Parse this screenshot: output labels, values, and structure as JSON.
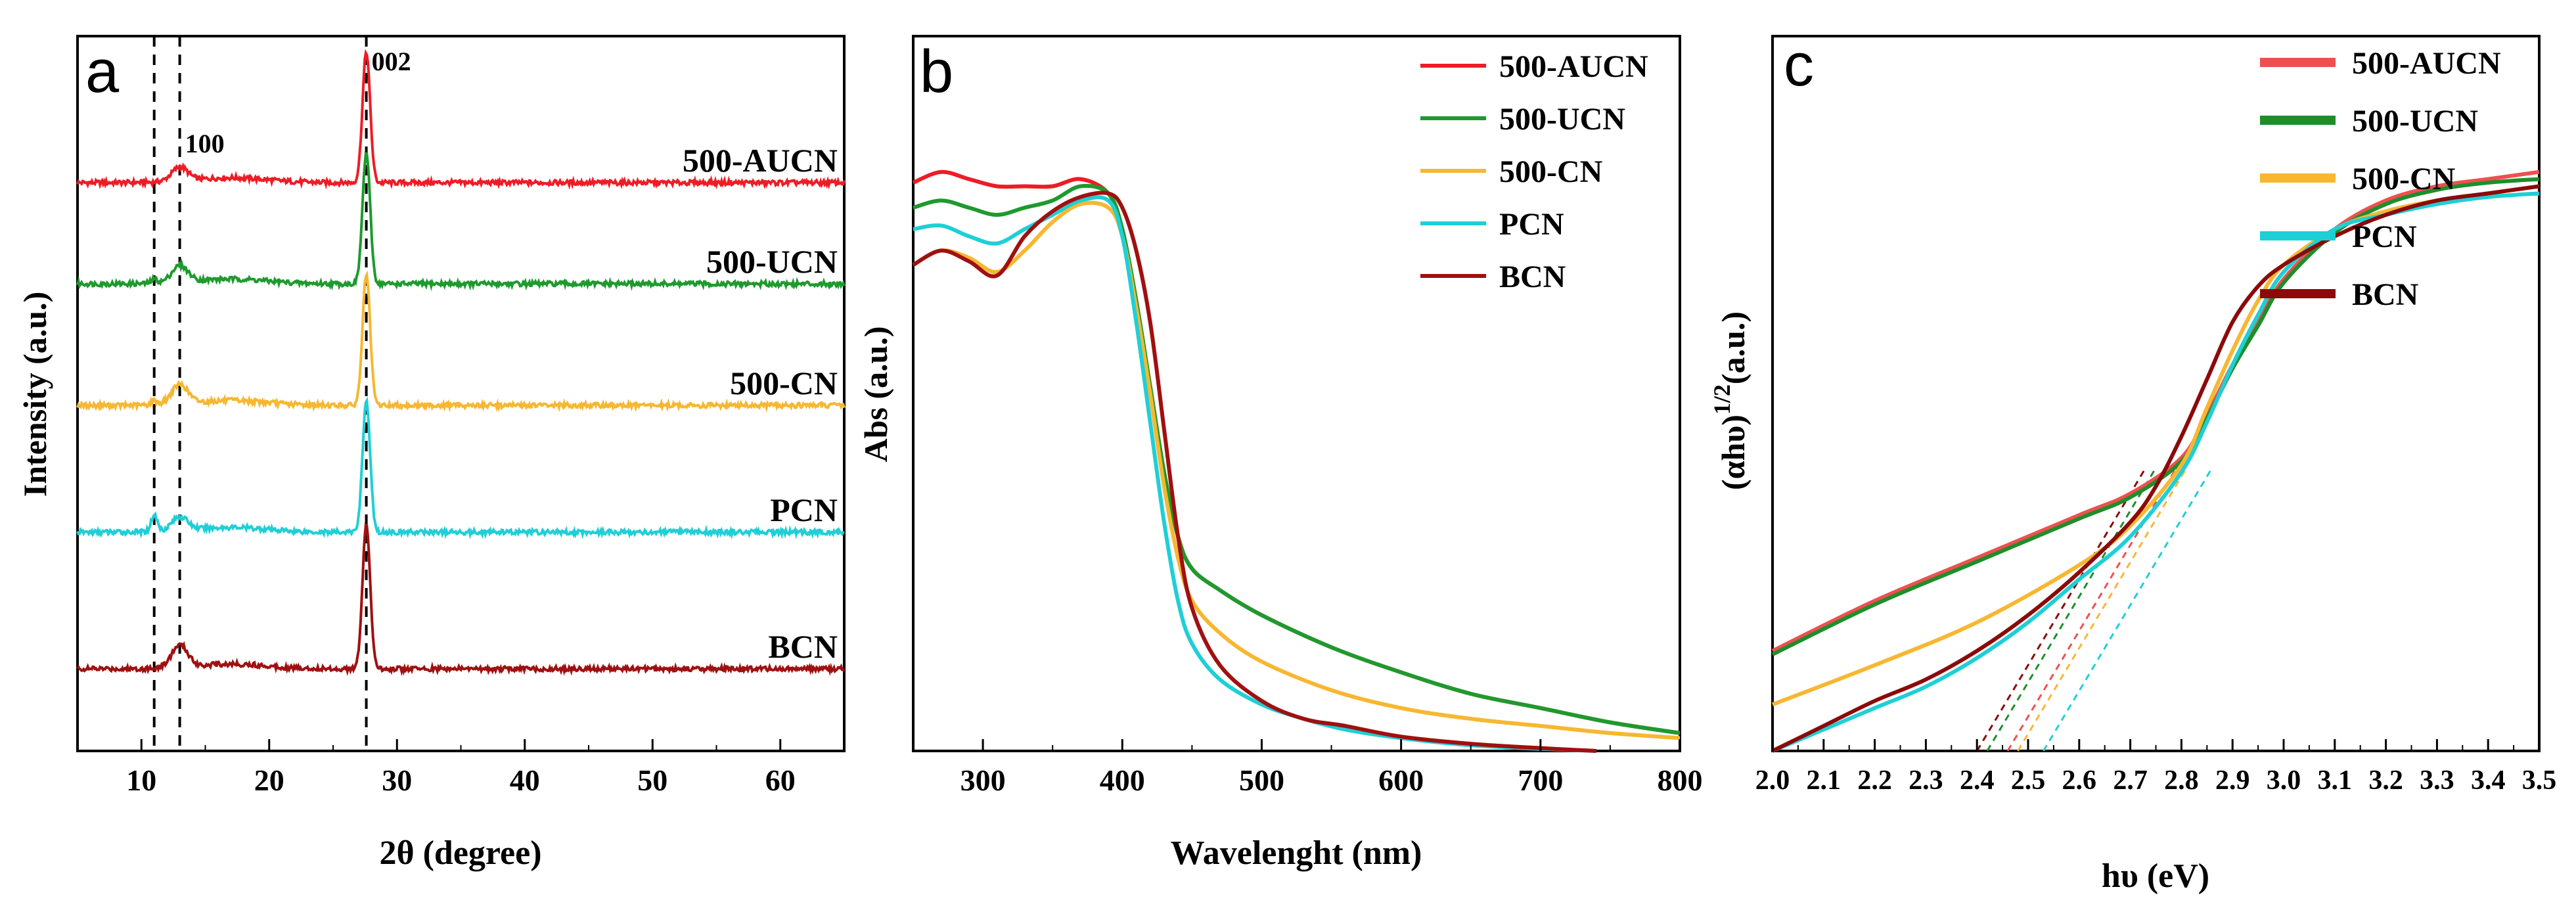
{
  "chart_data": [
    {
      "panel": "a",
      "type": "line",
      "xlabel": "2θ (degree)",
      "ylabel": "Intensity (a.u.)",
      "xlim": [
        5,
        65
      ],
      "xticks": [
        10,
        20,
        30,
        40,
        50,
        60
      ],
      "yticks": [],
      "reference_lines": [
        11,
        13,
        27.6
      ],
      "peak_labels": [
        {
          "text": "100",
          "x": 13
        },
        {
          "text": "002",
          "x": 27.6
        }
      ],
      "series": [
        {
          "name": "500-AUCN",
          "color": "#ee1c25",
          "offset": 4,
          "peak_002": 0.95,
          "peak_100": 0.1,
          "bump_11": 0.0
        },
        {
          "name": "500-UCN",
          "color": "#1e9a2e",
          "offset": 3,
          "peak_002": 0.95,
          "peak_100": 0.12,
          "bump_11": 0.03
        },
        {
          "name": "500-CN",
          "color": "#f7b731",
          "offset": 2,
          "peak_002": 0.95,
          "peak_100": 0.14,
          "bump_11": 0.03
        },
        {
          "name": "PCN",
          "color": "#1fcfd6",
          "offset": 1,
          "peak_002": 0.95,
          "peak_100": 0.1,
          "bump_11": 0.12
        },
        {
          "name": "BCN",
          "color": "#a01010",
          "offset": 0,
          "peak_002": 1.05,
          "peak_100": 0.16,
          "bump_11": 0.0
        }
      ]
    },
    {
      "panel": "b",
      "type": "line",
      "xlabel": "Wavelenght (nm)",
      "ylabel": "Abs (a.u.)",
      "xlim": [
        250,
        800
      ],
      "ylim": [
        0,
        1
      ],
      "xticks": [
        300,
        400,
        500,
        600,
        700,
        800
      ],
      "yticks": [],
      "legend_position": "top-right",
      "series": [
        {
          "name": "500-AUCN",
          "color": "#ee1c25",
          "x": [
            250,
            270,
            290,
            310,
            330,
            350,
            370,
            390,
            400,
            410,
            420,
            430,
            440,
            450,
            470,
            500,
            550,
            600,
            650,
            700,
            750,
            800
          ],
          "y": [
            0.795,
            0.81,
            0.8,
            0.79,
            0.79,
            0.79,
            0.8,
            0.78,
            0.73,
            0.63,
            0.51,
            0.39,
            0.3,
            0.255,
            0.225,
            0.19,
            0.145,
            0.11,
            0.08,
            0.06,
            0.04,
            0.025
          ]
        },
        {
          "name": "500-UCN",
          "color": "#1e9a2e",
          "x": [
            250,
            270,
            290,
            310,
            330,
            350,
            370,
            390,
            400,
            410,
            420,
            430,
            440,
            450,
            470,
            500,
            550,
            600,
            650,
            700,
            750,
            800
          ],
          "y": [
            0.76,
            0.77,
            0.76,
            0.75,
            0.76,
            0.77,
            0.79,
            0.78,
            0.73,
            0.63,
            0.51,
            0.39,
            0.3,
            0.255,
            0.225,
            0.19,
            0.145,
            0.11,
            0.08,
            0.06,
            0.04,
            0.025
          ]
        },
        {
          "name": "500-CN",
          "color": "#f7b731",
          "x": [
            250,
            270,
            290,
            310,
            330,
            350,
            370,
            390,
            400,
            410,
            420,
            430,
            440,
            450,
            470,
            500,
            550,
            600,
            650,
            700,
            750,
            800
          ],
          "y": [
            0.68,
            0.7,
            0.69,
            0.67,
            0.7,
            0.74,
            0.765,
            0.76,
            0.72,
            0.62,
            0.5,
            0.37,
            0.27,
            0.21,
            0.165,
            0.125,
            0.085,
            0.06,
            0.045,
            0.035,
            0.025,
            0.018
          ]
        },
        {
          "name": "PCN",
          "color": "#1fcfd6",
          "x": [
            250,
            270,
            290,
            310,
            330,
            350,
            370,
            390,
            400,
            410,
            420,
            430,
            440,
            450,
            470,
            500,
            530,
            560,
            600,
            650,
            700,
            740
          ],
          "y": [
            0.73,
            0.735,
            0.72,
            0.71,
            0.73,
            0.75,
            0.77,
            0.77,
            0.72,
            0.6,
            0.46,
            0.32,
            0.21,
            0.15,
            0.1,
            0.065,
            0.045,
            0.03,
            0.018,
            0.008,
            0.003,
            0.0
          ]
        },
        {
          "name": "BCN",
          "color": "#a01010",
          "x": [
            250,
            270,
            290,
            310,
            330,
            350,
            370,
            390,
            400,
            410,
            420,
            430,
            440,
            450,
            470,
            500,
            530,
            560,
            600,
            650,
            700,
            740
          ],
          "y": [
            0.68,
            0.7,
            0.685,
            0.665,
            0.72,
            0.755,
            0.775,
            0.78,
            0.76,
            0.7,
            0.6,
            0.45,
            0.3,
            0.2,
            0.12,
            0.07,
            0.045,
            0.035,
            0.02,
            0.01,
            0.004,
            0.0
          ]
        }
      ]
    },
    {
      "panel": "c",
      "type": "line",
      "xlabel": "hυ (eV)",
      "ylabel": "(αhυ)",
      "ylabel_superscript": "1/2",
      "ylabel_suffix": "(a.u.)",
      "xlim": [
        2.0,
        3.5
      ],
      "ylim": [
        0,
        1
      ],
      "xticks": [
        2.0,
        2.1,
        2.2,
        2.3,
        2.4,
        2.5,
        2.6,
        2.7,
        2.8,
        2.9,
        3.0,
        3.1,
        3.2,
        3.3,
        3.4,
        3.5
      ],
      "yticks": [],
      "legend_position": "top-right",
      "series": [
        {
          "name": "500-AUCN",
          "color": "#ee5050",
          "x": [
            2.0,
            2.2,
            2.4,
            2.6,
            2.7,
            2.8,
            2.85,
            2.9,
            2.95,
            3.0,
            3.1,
            3.2,
            3.3,
            3.4,
            3.5
          ],
          "y": [
            0.14,
            0.21,
            0.27,
            0.33,
            0.36,
            0.41,
            0.47,
            0.54,
            0.6,
            0.66,
            0.73,
            0.77,
            0.79,
            0.8,
            0.81
          ],
          "bandgap": 2.46
        },
        {
          "name": "500-UCN",
          "color": "#1e8e2a",
          "x": [
            2.0,
            2.2,
            2.4,
            2.6,
            2.7,
            2.8,
            2.85,
            2.9,
            2.95,
            3.0,
            3.1,
            3.2,
            3.3,
            3.4,
            3.5
          ],
          "y": [
            0.135,
            0.205,
            0.265,
            0.325,
            0.355,
            0.405,
            0.465,
            0.535,
            0.595,
            0.655,
            0.725,
            0.765,
            0.785,
            0.795,
            0.8
          ],
          "bandgap": 2.42
        },
        {
          "name": "500-CN",
          "color": "#f7b731",
          "x": [
            2.0,
            2.2,
            2.4,
            2.6,
            2.7,
            2.8,
            2.85,
            2.9,
            2.95,
            3.0,
            3.1,
            3.2,
            3.3,
            3.4,
            3.5
          ],
          "y": [
            0.065,
            0.12,
            0.18,
            0.26,
            0.315,
            0.4,
            0.48,
            0.56,
            0.63,
            0.68,
            0.73,
            0.755,
            0.77,
            0.78,
            0.79
          ],
          "bandgap": 2.48
        },
        {
          "name": "PCN",
          "color": "#1fcfd6",
          "x": [
            2.0,
            2.1,
            2.2,
            2.3,
            2.4,
            2.5,
            2.6,
            2.7,
            2.8,
            2.85,
            2.9,
            2.95,
            3.0,
            3.1,
            3.2,
            3.3,
            3.4,
            3.5
          ],
          "y": [
            0.0,
            0.03,
            0.06,
            0.09,
            0.13,
            0.18,
            0.24,
            0.3,
            0.39,
            0.46,
            0.54,
            0.61,
            0.67,
            0.73,
            0.75,
            0.765,
            0.775,
            0.78
          ],
          "bandgap": 2.53
        },
        {
          "name": "BCN",
          "color": "#8b0a0a",
          "x": [
            2.0,
            2.1,
            2.2,
            2.3,
            2.4,
            2.5,
            2.6,
            2.7,
            2.75,
            2.8,
            2.85,
            2.9,
            2.95,
            3.0,
            3.1,
            3.2,
            3.3,
            3.4,
            3.5
          ],
          "y": [
            0.0,
            0.035,
            0.07,
            0.1,
            0.14,
            0.19,
            0.25,
            0.32,
            0.37,
            0.44,
            0.52,
            0.6,
            0.65,
            0.68,
            0.72,
            0.75,
            0.77,
            0.78,
            0.79
          ],
          "bandgap": 2.4
        }
      ]
    }
  ]
}
